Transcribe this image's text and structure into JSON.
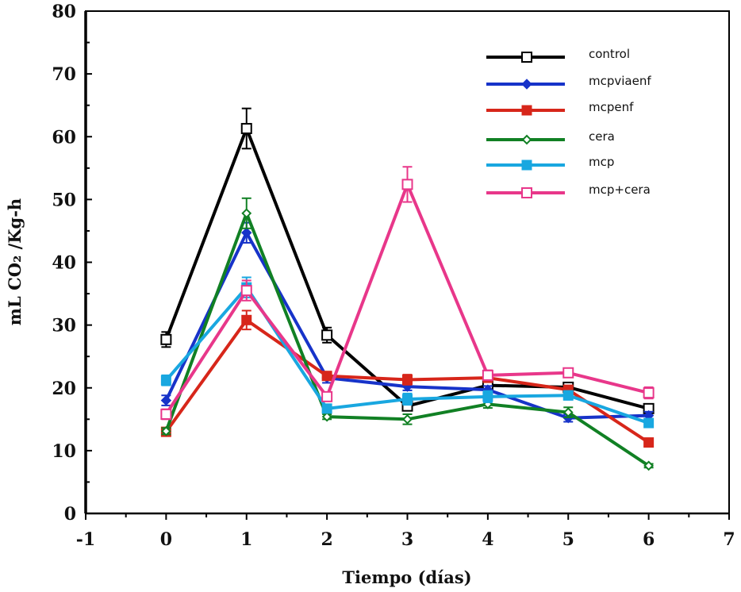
{
  "chart_data": {
    "type": "line",
    "title": "",
    "xlabel": "Tiempo (días)",
    "ylabel": "mL CO₂ /Kg-h",
    "xlim": [
      -1,
      7
    ],
    "ylim": [
      0,
      80
    ],
    "xticks": [
      -1,
      0,
      1,
      2,
      3,
      4,
      5,
      6,
      7
    ],
    "yticks": [
      0,
      10,
      20,
      30,
      40,
      50,
      60,
      70,
      80
    ],
    "grid": false,
    "legend_position": "top-right",
    "x": [
      0,
      1,
      2,
      3,
      4,
      5,
      6
    ],
    "series": [
      {
        "name": "control",
        "color": "#000000",
        "marker": "open-square",
        "values": [
          27.7,
          61.3,
          28.4,
          17.1,
          20.4,
          20.1,
          16.7
        ],
        "errors": [
          1.2,
          3.2,
          1.2,
          0.6,
          0.5,
          0.6,
          0.6
        ]
      },
      {
        "name": "mcpviaenf",
        "color": "#1733c9",
        "marker": "filled-diamond",
        "values": [
          18.0,
          44.7,
          21.6,
          20.2,
          19.7,
          15.2,
          15.6
        ],
        "errors": [
          0.8,
          1.6,
          0.8,
          0.6,
          0.6,
          0.6,
          0.6
        ]
      },
      {
        "name": "mcpenf",
        "color": "#d7261a",
        "marker": "filled-square",
        "values": [
          13.0,
          30.8,
          21.9,
          21.3,
          21.6,
          19.7,
          11.3
        ],
        "errors": [
          0.5,
          1.5,
          0.6,
          0.8,
          0.6,
          0.5,
          0.4
        ]
      },
      {
        "name": "cera",
        "color": "#118024",
        "marker": "open-diamond",
        "values": [
          13.1,
          47.8,
          15.4,
          15.0,
          17.4,
          16.1,
          7.6
        ],
        "errors": [
          0.5,
          2.4,
          0.4,
          0.8,
          0.6,
          0.8,
          0.3
        ]
      },
      {
        "name": "mcp",
        "color": "#19a7e0",
        "marker": "filled-square",
        "values": [
          21.2,
          36.0,
          16.7,
          18.2,
          18.6,
          18.8,
          14.4
        ],
        "errors": [
          0.8,
          1.6,
          0.5,
          0.9,
          0.9,
          0.7,
          0.5
        ]
      },
      {
        "name": "mcp+cera",
        "color": "#e8378a",
        "marker": "open-square",
        "values": [
          15.8,
          35.5,
          18.6,
          52.4,
          22.0,
          22.4,
          19.2
        ],
        "errors": [
          0.8,
          1.6,
          0.7,
          2.8,
          0.8,
          0.5,
          0.9
        ]
      }
    ]
  }
}
